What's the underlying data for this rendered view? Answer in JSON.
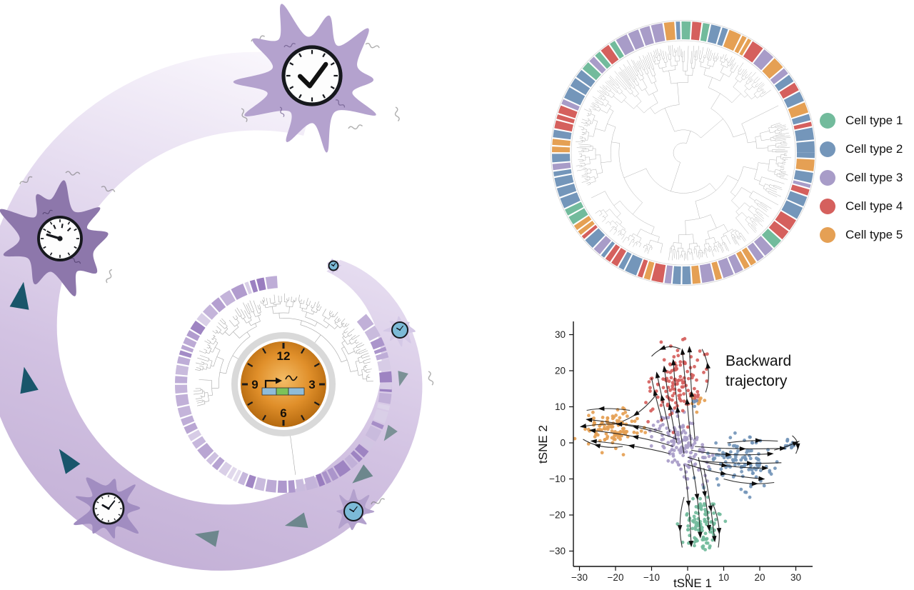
{
  "palette": {
    "type1": "#72bb9c",
    "type2": "#7496ba",
    "type3": "#a89cc8",
    "type4": "#d5605d",
    "type5": "#e5a054"
  },
  "spiral": {
    "band_light": "#f8f5fc",
    "band_mid": "#d2c2e2",
    "band_dark": "#c3b0d6",
    "arrow_teal": "#19566b",
    "arrow_gray": "#6d878d",
    "cell_top_color": "#b4a2ce",
    "cell_left_color": "#8d77ab",
    "cell_bottom_color": "#a18dc1",
    "cell_small_color": "#b3a1cd",
    "cell_blob_color": "#d4c8e6"
  },
  "clock": {
    "numbers": [
      "12",
      "3",
      "6",
      "9"
    ],
    "face_inner": "#f4bc66",
    "face_mid": "#e08f2a",
    "face_outer": "#a95f08",
    "exon_blue": "#8fbcd9",
    "exon_green": "#7cc25a"
  },
  "tree_panel": {
    "ring_composition": {
      "type2": 0.28,
      "type5": 0.27,
      "type4": 0.17,
      "type3": 0.16,
      "type1": 0.12
    }
  },
  "legend": {
    "items": [
      {
        "label": "Cell type 1",
        "color": "#72bb9c"
      },
      {
        "label": "Cell type 2",
        "color": "#7496ba"
      },
      {
        "label": "Cell type 3",
        "color": "#a89cc8"
      },
      {
        "label": "Cell type 4",
        "color": "#d5605d"
      },
      {
        "label": "Cell type 5",
        "color": "#e5a054"
      }
    ]
  },
  "tsne": {
    "xlabel": "tSNE 1",
    "ylabel": "tSNE 2",
    "annotation_line1": "Backward",
    "annotation_line2": "trajectory",
    "x_tick_labels": [
      "−30",
      "−20",
      "−10",
      "0",
      "10",
      "20",
      "30"
    ],
    "y_tick_labels": [
      "30",
      "20",
      "10",
      "0",
      "−10",
      "−20",
      "−30"
    ]
  },
  "chart_data": {
    "type": "scatter",
    "title": "Backward trajectory",
    "xlabel": "tSNE 1",
    "ylabel": "tSNE 2",
    "xlim": [
      -33,
      33
    ],
    "ylim": [
      -33,
      33
    ],
    "x_ticks": [
      -30,
      -20,
      -10,
      0,
      10,
      20,
      30
    ],
    "y_ticks": [
      30,
      20,
      10,
      0,
      -10,
      -20,
      -30
    ],
    "grid": false,
    "clusters": [
      {
        "name": "Cell type 1",
        "color": "type1",
        "cx": 4,
        "cy": -23,
        "sx": 2.8,
        "sy": 4.4,
        "rot": 5,
        "n": 110
      },
      {
        "name": "Cell type 2",
        "color": "type2",
        "cx": 14.5,
        "cy": -5.5,
        "sx": 4.6,
        "sy": 2.9,
        "rot": -8,
        "n": 115
      },
      {
        "name": "Cell type 2 outlier",
        "color": "type2",
        "cx": 28.5,
        "cy": -0.5,
        "sx": 1.4,
        "sy": 1.1,
        "rot": 0,
        "n": 12
      },
      {
        "name": "Cell type 3",
        "color": "type3",
        "cx": -1.5,
        "cy": -1,
        "sx": 5.5,
        "sy": 2.7,
        "rot": -56,
        "n": 135
      },
      {
        "name": "Cell type 4",
        "color": "type4",
        "cx": -3,
        "cy": 17,
        "sx": 3.2,
        "sy": 5.4,
        "rot": -10,
        "n": 125
      },
      {
        "name": "Cell type 5",
        "color": "type5",
        "cx": -21,
        "cy": 4,
        "sx": 4.2,
        "sy": 2.6,
        "rot": 8,
        "n": 105
      },
      {
        "name": "minor mixed orange",
        "color": "type5",
        "cx": 2.5,
        "cy": 11.5,
        "sx": 1.3,
        "sy": 1.0,
        "rot": 0,
        "n": 10
      },
      {
        "name": "minor mixed red",
        "color": "type4",
        "cx": 3.2,
        "cy": 12.3,
        "sx": 1.1,
        "sy": 0.9,
        "rot": 0,
        "n": 5
      },
      {
        "name": "minor mixed blue",
        "color": "type2",
        "cx": 2.0,
        "cy": 10.6,
        "sx": 1.0,
        "sy": 0.8,
        "rot": 0,
        "n": 4
      }
    ],
    "streams": [
      {
        "p": [
          [
            -1,
            -3
          ],
          [
            -3,
            8
          ],
          [
            -4,
            23
          ]
        ],
        "arrows": [
          0.5,
          0.97
        ]
      },
      {
        "p": [
          [
            1,
            -1
          ],
          [
            0,
            10
          ],
          [
            -1.5,
            26
          ]
        ],
        "arrows": [
          0.5,
          0.97
        ]
      },
      {
        "p": [
          [
            -3,
            0
          ],
          [
            -5,
            9
          ],
          [
            -6.5,
            21
          ]
        ],
        "arrows": [
          0.5,
          0.97
        ]
      },
      {
        "p": [
          [
            -5,
            3
          ],
          [
            -7,
            12
          ],
          [
            -8.5,
            19
          ]
        ],
        "arrows": [
          0.55,
          0.97
        ]
      },
      {
        "p": [
          [
            2,
            1
          ],
          [
            1,
            13
          ],
          [
            0.5,
            26.5
          ]
        ],
        "arrows": [
          0.5,
          0.97
        ]
      },
      {
        "p": [
          [
            -7,
            6
          ],
          [
            -9,
            13
          ],
          [
            -10,
            18
          ]
        ],
        "arrows": [
          0.6
        ]
      },
      {
        "p": [
          [
            -4,
            -1
          ],
          [
            -13,
            2
          ],
          [
            -27,
            3.5
          ]
        ],
        "arrows": [
          0.5,
          0.97
        ]
      },
      {
        "p": [
          [
            -3,
            1
          ],
          [
            -13,
            5
          ],
          [
            -28,
            6.5
          ]
        ],
        "arrows": [
          0.5,
          0.97
        ]
      },
      {
        "p": [
          [
            -5,
            -3
          ],
          [
            -15,
            -0.5
          ],
          [
            -26.5,
            0.5
          ]
        ],
        "arrows": [
          0.5,
          0.97
        ]
      },
      {
        "p": [
          [
            -7,
            3
          ],
          [
            -17,
            6.5
          ],
          [
            -29.5,
            4.5
          ]
        ],
        "arrows": [
          0.55,
          0.97
        ]
      },
      {
        "p": [
          [
            0,
            -4
          ],
          [
            9,
            -7
          ],
          [
            22,
            -7
          ]
        ],
        "arrows": [
          0.5,
          0.97
        ]
      },
      {
        "p": [
          [
            1,
            -2
          ],
          [
            10,
            -4
          ],
          [
            23.5,
            -3
          ]
        ],
        "arrows": [
          0.5,
          0.97
        ]
      },
      {
        "p": [
          [
            0,
            -6
          ],
          [
            9,
            -9
          ],
          [
            21,
            -10
          ]
        ],
        "arrows": [
          0.5,
          0.97
        ]
      },
      {
        "p": [
          [
            2,
            -1
          ],
          [
            13,
            -2
          ],
          [
            27,
            -1.5
          ]
        ],
        "arrows": [
          0.55,
          0.97
        ]
      },
      {
        "p": [
          [
            3,
            -5
          ],
          [
            15,
            -6
          ],
          [
            26,
            -5.5
          ]
        ],
        "arrows": [
          0.6
        ]
      },
      {
        "p": [
          [
            24,
            -2
          ],
          [
            28,
            -1
          ],
          [
            31,
            0.5
          ]
        ],
        "arrows": [
          0.8
        ]
      },
      {
        "p": [
          [
            1,
            -5
          ],
          [
            3,
            -14
          ],
          [
            3.5,
            -26
          ]
        ],
        "arrows": [
          0.5,
          0.97
        ]
      },
      {
        "p": [
          [
            -1,
            -6
          ],
          [
            0.5,
            -16
          ],
          [
            1,
            -28.5
          ]
        ],
        "arrows": [
          0.5,
          0.97
        ]
      },
      {
        "p": [
          [
            3,
            -4
          ],
          [
            5,
            -14
          ],
          [
            6,
            -24
          ]
        ],
        "arrows": [
          0.5,
          0.97
        ]
      },
      {
        "p": [
          [
            4.5,
            -7
          ],
          [
            6.5,
            -17
          ],
          [
            7.5,
            -27
          ]
        ],
        "arrows": [
          0.55,
          0.97
        ]
      },
      {
        "p": [
          [
            -9,
            13
          ],
          [
            -13,
            8
          ],
          [
            -18,
            6
          ]
        ],
        "arrows": [
          0.6
        ]
      },
      {
        "p": [
          [
            -2,
            26
          ],
          [
            -6,
            28
          ],
          [
            -10,
            24
          ]
        ],
        "arrows": [
          0.6
        ]
      },
      {
        "p": [
          [
            5,
            14
          ],
          [
            7,
            20
          ],
          [
            4,
            26
          ]
        ],
        "arrows": [
          0.6
        ]
      },
      {
        "p": [
          [
            -18,
            -1
          ],
          [
            -24,
            -2
          ],
          [
            -29,
            1
          ]
        ],
        "arrows": [
          0.6
        ]
      },
      {
        "p": [
          [
            -16,
            9
          ],
          [
            -23,
            10
          ],
          [
            -28,
            9
          ]
        ],
        "arrows": [
          0.6
        ]
      },
      {
        "p": [
          [
            10,
            -10
          ],
          [
            17,
            -12
          ],
          [
            24,
            -11
          ]
        ],
        "arrows": [
          0.6
        ]
      },
      {
        "p": [
          [
            11,
            0
          ],
          [
            18,
            1
          ],
          [
            25,
            0.5
          ]
        ],
        "arrows": [
          0.6
        ]
      },
      {
        "p": [
          [
            -1,
            -15
          ],
          [
            -3,
            -22
          ],
          [
            -1.5,
            -29
          ]
        ],
        "arrows": [
          0.6
        ]
      },
      {
        "p": [
          [
            7,
            -17
          ],
          [
            9.5,
            -23
          ],
          [
            8.5,
            -29
          ]
        ],
        "arrows": [
          0.6
        ]
      },
      {
        "p": [
          [
            29,
            2
          ],
          [
            31.5,
            0
          ],
          [
            30,
            -3
          ]
        ],
        "arrows": [
          0.6
        ]
      }
    ]
  }
}
